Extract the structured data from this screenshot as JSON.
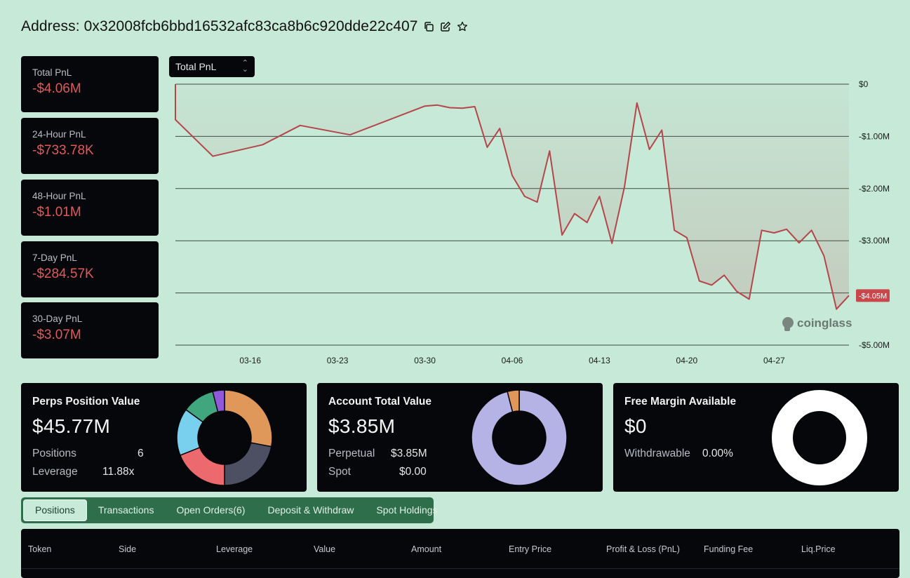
{
  "header": {
    "title": "Address: 0x32008fcb6bbd16532afc83ca8b6c920dde22c407"
  },
  "stats": [
    {
      "label": "Total PnL",
      "value": "-$4.06M"
    },
    {
      "label": "24-Hour PnL",
      "value": "-$733.78K"
    },
    {
      "label": "48-Hour PnL",
      "value": "-$1.01M"
    },
    {
      "label": "7-Day PnL",
      "value": "-$284.57K"
    },
    {
      "label": "30-Day PnL",
      "value": "-$3.07M"
    }
  ],
  "chart_controls": {
    "metric_selected": "Total PnL"
  },
  "watermark": "coinglass",
  "chart_data": {
    "type": "line",
    "title": "",
    "y_ticks": [
      "$0",
      "-$1.00M",
      "-$2.00M",
      "-$3.00M",
      "-$5.00M"
    ],
    "x_ticks": [
      "03-16",
      "03-23",
      "03-30",
      "04-06",
      "04-13",
      "04-20",
      "04-27"
    ],
    "ylim": [
      -5.0,
      0
    ],
    "last_value_label": "-$4.05M",
    "line_color": "#b5454a",
    "series": [
      {
        "x": [
          "03-10",
          "03-10",
          "03-13",
          "03-17",
          "03-20",
          "03-24",
          "03-30",
          "03-31",
          "04-01",
          "04-02",
          "04-03",
          "04-04",
          "04-05",
          "04-06",
          "04-07",
          "04-08",
          "04-09",
          "04-10",
          "04-11",
          "04-12",
          "04-13",
          "04-14",
          "04-15",
          "04-16",
          "04-17",
          "04-18",
          "04-19",
          "04-20",
          "04-21",
          "04-22",
          "04-23",
          "04-24",
          "04-25",
          "04-26",
          "04-27",
          "04-28",
          "04-29",
          "04-30",
          "05-01",
          "05-02",
          "05-03"
        ],
        "values": [
          0.0,
          -0.68,
          -1.38,
          -1.16,
          -0.79,
          -0.97,
          -0.42,
          -0.4,
          -0.45,
          -0.46,
          -0.43,
          -1.21,
          -0.85,
          -1.75,
          -2.15,
          -2.26,
          -1.28,
          -2.89,
          -2.48,
          -2.65,
          -2.15,
          -3.05,
          -1.97,
          -0.36,
          -1.25,
          -0.88,
          -2.8,
          -2.94,
          -3.77,
          -3.85,
          -3.66,
          -3.97,
          -4.12,
          -2.8,
          -2.85,
          -2.78,
          -3.04,
          -2.8,
          -3.29,
          -4.31,
          -4.05
        ]
      }
    ]
  },
  "panels": {
    "perps": {
      "title": "Perps Position Value",
      "value": "$45.77M",
      "rows": [
        {
          "label": "Positions",
          "value": "6"
        },
        {
          "label": "Leverage",
          "value": "11.88x"
        }
      ],
      "donut": [
        {
          "value": 28,
          "color": "#e0975a"
        },
        {
          "value": 22,
          "color": "#4d5063"
        },
        {
          "value": 19,
          "color": "#ec6a6e"
        },
        {
          "value": 16,
          "color": "#78d0ee"
        },
        {
          "value": 11,
          "color": "#3fa67e"
        },
        {
          "value": 4,
          "color": "#8f59d9"
        }
      ]
    },
    "account": {
      "title": "Account Total Value",
      "value": "$3.85M",
      "rows": [
        {
          "label": "Perpetual",
          "value": "$3.85M"
        },
        {
          "label": "Spot",
          "value": "$0.00"
        }
      ],
      "donut": [
        {
          "value": 96,
          "color": "#b5b2e6"
        },
        {
          "value": 4,
          "color": "#e0975a"
        }
      ]
    },
    "margin": {
      "title": "Free Margin Available",
      "value": "$0",
      "rows": [
        {
          "label": "Withdrawable",
          "value": "0.00%"
        }
      ],
      "donut": [
        {
          "value": 100,
          "color": "#ffffff"
        }
      ]
    }
  },
  "tabs": [
    "Positions",
    "Transactions",
    "Open Orders(6)",
    "Deposit & Withdraw",
    "Spot Holdings"
  ],
  "table": {
    "columns": [
      "Token",
      "Side",
      "Leverage",
      "Value",
      "Amount",
      "Entry Price",
      "Profit & Loss (PnL)",
      "Funding Fee",
      "Liq.Price"
    ]
  },
  "colors": {
    "background": "#c6ead7",
    "card": "#05070a",
    "negative": "#e05a5a",
    "tab_bar": "#2f6e4b"
  }
}
